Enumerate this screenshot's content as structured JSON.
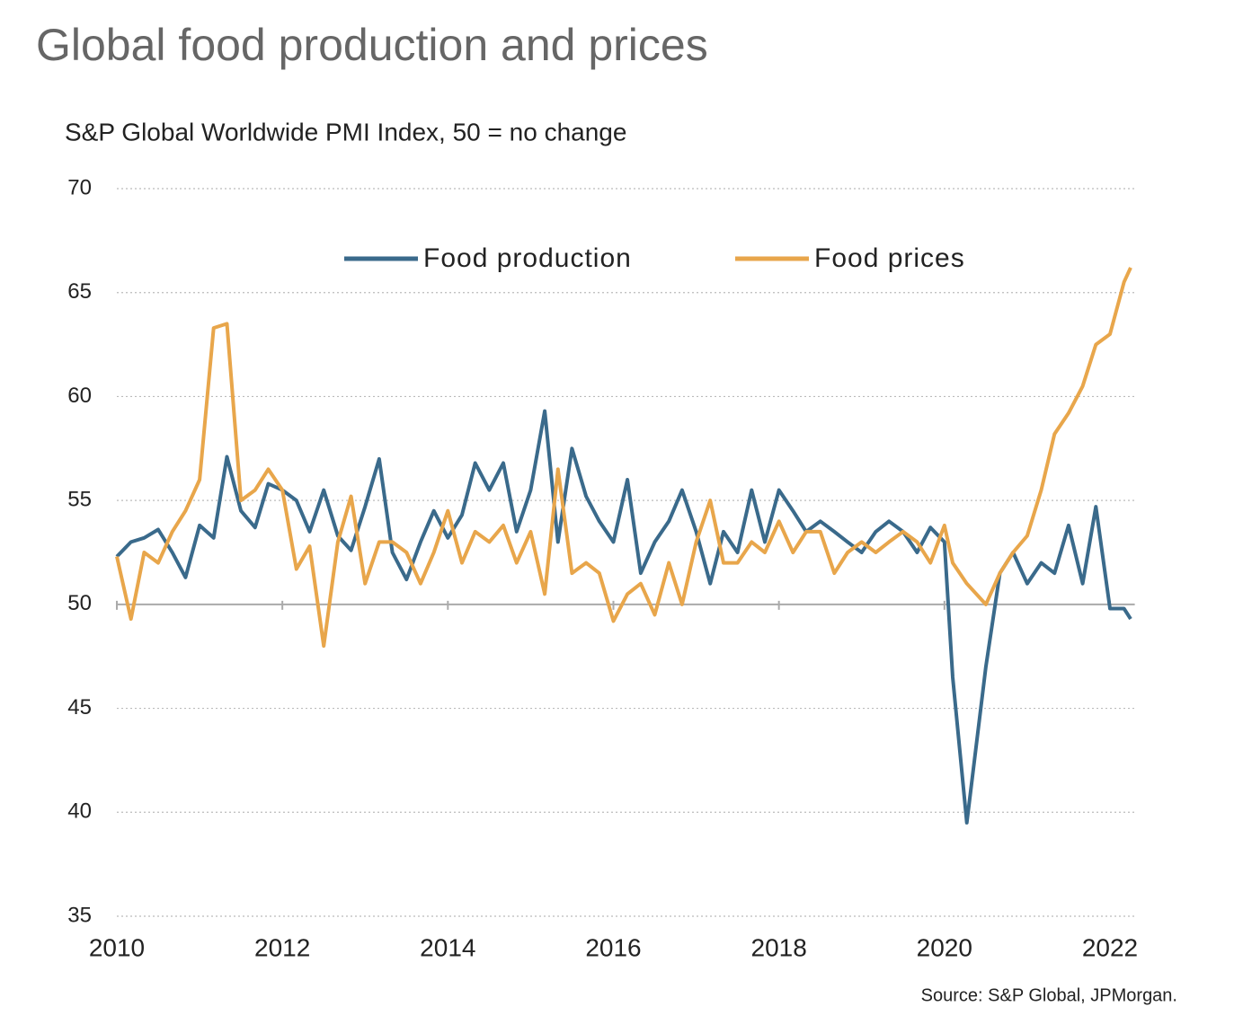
{
  "chart_data": {
    "type": "line",
    "title": "Global food production and prices",
    "subtitle": "S&P Global Worldwide PMI Index, 50 =  no change",
    "source": "Source: S&P Global, JPMorgan.",
    "x": [
      2010.0,
      2010.17,
      2010.33,
      2010.5,
      2010.67,
      2010.83,
      2011.0,
      2011.17,
      2011.33,
      2011.5,
      2011.67,
      2011.83,
      2012.0,
      2012.17,
      2012.33,
      2012.5,
      2012.67,
      2012.83,
      2013.0,
      2013.17,
      2013.33,
      2013.5,
      2013.67,
      2013.83,
      2014.0,
      2014.17,
      2014.33,
      2014.5,
      2014.67,
      2014.83,
      2015.0,
      2015.17,
      2015.33,
      2015.5,
      2015.67,
      2015.83,
      2016.0,
      2016.17,
      2016.33,
      2016.5,
      2016.67,
      2016.83,
      2017.0,
      2017.17,
      2017.33,
      2017.5,
      2017.67,
      2017.83,
      2018.0,
      2018.17,
      2018.33,
      2018.5,
      2018.67,
      2018.83,
      2019.0,
      2019.17,
      2019.33,
      2019.5,
      2019.67,
      2019.83,
      2020.0,
      2020.1,
      2020.27,
      2020.5,
      2020.67,
      2020.83,
      2021.0,
      2021.17,
      2021.33,
      2021.5,
      2021.67,
      2021.83,
      2022.0,
      2022.17,
      2022.25
    ],
    "series": [
      {
        "name": "Food production",
        "color": "#3a6a8b",
        "values": [
          52.3,
          53,
          53.2,
          53.6,
          52.5,
          51.3,
          53.8,
          53.2,
          57.1,
          54.5,
          53.7,
          55.8,
          55.5,
          55,
          53.5,
          55.5,
          53.3,
          52.6,
          54.7,
          57,
          52.5,
          51.2,
          53,
          54.5,
          53.2,
          54.3,
          56.8,
          55.5,
          56.8,
          53.5,
          55.5,
          59.3,
          53,
          57.5,
          55.2,
          54,
          53,
          56,
          51.5,
          53,
          54,
          55.5,
          53.5,
          51,
          53.5,
          52.5,
          55.5,
          53,
          55.5,
          54.5,
          53.5,
          54,
          53.5,
          53,
          52.5,
          53.5,
          54,
          53.5,
          52.5,
          53.7,
          53,
          46.5,
          39.5,
          47,
          51.5,
          52.5,
          51,
          52,
          51.5,
          53.8,
          51,
          54.7,
          49.8,
          49.8,
          49.3
        ]
      },
      {
        "name": "Food prices",
        "color": "#e8a64b",
        "values": [
          52.3,
          49.3,
          52.5,
          52,
          53.5,
          54.5,
          56,
          63.3,
          63.5,
          55,
          55.5,
          56.5,
          55.5,
          51.7,
          52.8,
          48,
          53,
          55.2,
          51,
          53,
          53,
          52.5,
          51,
          52.5,
          54.5,
          52,
          53.5,
          53,
          53.8,
          52,
          53.5,
          50.5,
          56.5,
          51.5,
          52,
          51.5,
          49.2,
          50.5,
          51,
          49.5,
          52,
          50,
          53,
          55,
          52,
          52,
          53,
          52.5,
          54,
          52.5,
          53.5,
          53.5,
          51.5,
          52.5,
          53,
          52.5,
          53,
          53.5,
          53,
          52,
          53.8,
          52,
          51,
          50,
          51.5,
          52.5,
          53.3,
          55.5,
          58.2,
          59.2,
          60.5,
          62.5,
          63,
          65.5,
          66.2
        ]
      }
    ],
    "xlim": [
      2010,
      2022.3
    ],
    "xticks": [
      2010,
      2012,
      2014,
      2016,
      2018,
      2020,
      2022
    ],
    "ylim": [
      35,
      70
    ],
    "yticks": [
      35,
      40,
      45,
      50,
      55,
      60,
      65,
      70
    ],
    "hline": 50,
    "grid": true,
    "legend": "top"
  }
}
